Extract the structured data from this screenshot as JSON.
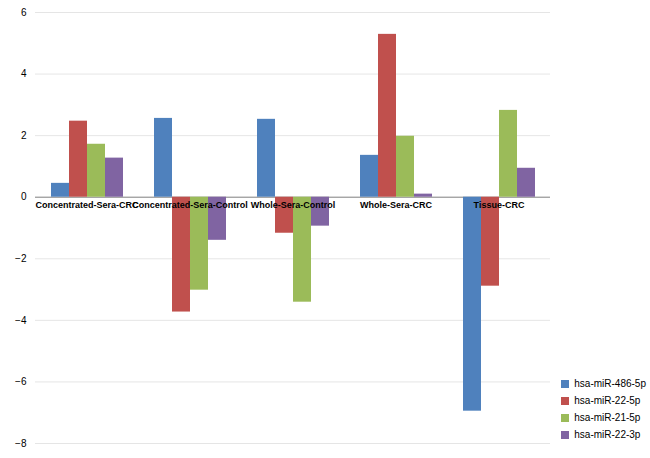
{
  "chart_data": {
    "type": "bar",
    "categories": [
      "Concentrated-Sera-CRC",
      "Concentrated-Sera-Control",
      "Whole-Sera-Control",
      "Whole-Sera-CRC",
      "Tissue-CRC"
    ],
    "series": [
      {
        "name": "hsa-miR-486-5p",
        "color": "#4f81bd",
        "values": [
          0.45,
          2.56,
          2.53,
          1.36,
          -6.95
        ]
      },
      {
        "name": "hsa-miR-22-5p",
        "color": "#c0504d",
        "values": [
          2.47,
          -3.73,
          -1.17,
          5.29,
          -2.89
        ]
      },
      {
        "name": "hsa-miR-21-5p",
        "color": "#9bbb59",
        "values": [
          1.72,
          -3.02,
          -3.41,
          1.98,
          2.82
        ]
      },
      {
        "name": "hsa-miR-22-3p",
        "color": "#8064a2",
        "values": [
          1.27,
          -1.4,
          -0.94,
          0.1,
          0.94
        ]
      }
    ],
    "ylim": [
      -8,
      6
    ],
    "yticks": [
      -8,
      -6,
      -4,
      -2,
      0,
      2,
      4,
      6
    ],
    "grid": true,
    "legend": "right"
  }
}
